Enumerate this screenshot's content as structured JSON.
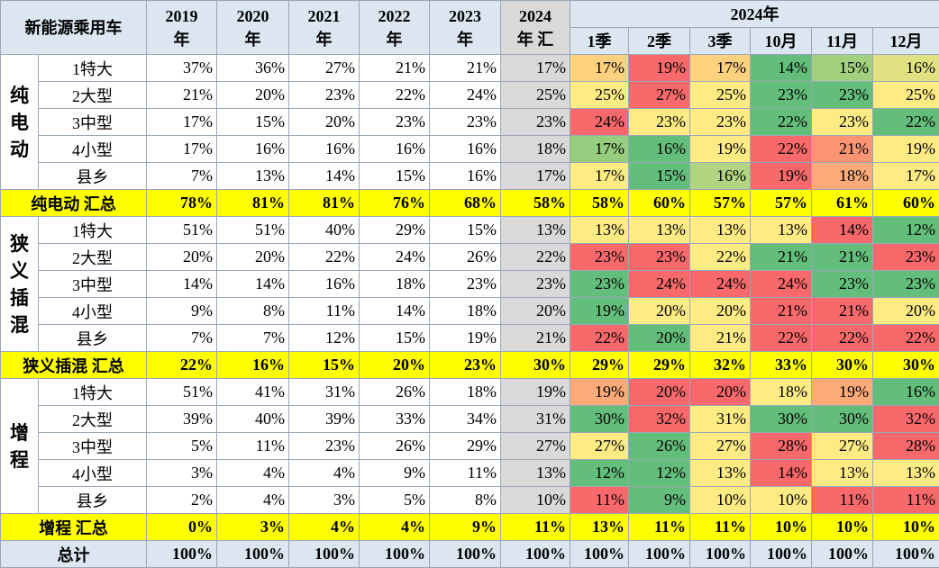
{
  "header": {
    "corner": "新能源乘用车",
    "years": [
      {
        "top": "2019",
        "bottom": "年"
      },
      {
        "top": "2020",
        "bottom": "年"
      },
      {
        "top": "2021",
        "bottom": "年"
      },
      {
        "top": "2022",
        "bottom": "年"
      },
      {
        "top": "2023",
        "bottom": "年"
      },
      {
        "top": "2024",
        "bottom": "年 汇"
      }
    ],
    "group": "2024年",
    "periods": [
      "1季",
      "2季",
      "3季",
      "10月",
      "11月",
      "12月"
    ]
  },
  "groups": [
    {
      "name": "纯电动",
      "rows": [
        {
          "label": "1特大",
          "values": [
            "37%",
            "36%",
            "27%",
            "21%",
            "21%",
            "17%",
            "17%",
            "19%",
            "17%",
            "14%",
            "15%",
            "16%"
          ]
        },
        {
          "label": "2大型",
          "values": [
            "21%",
            "20%",
            "23%",
            "22%",
            "24%",
            "25%",
            "25%",
            "27%",
            "25%",
            "23%",
            "23%",
            "25%"
          ]
        },
        {
          "label": "3中型",
          "values": [
            "17%",
            "15%",
            "20%",
            "23%",
            "23%",
            "23%",
            "24%",
            "23%",
            "23%",
            "22%",
            "23%",
            "22%"
          ]
        },
        {
          "label": "4小型",
          "values": [
            "17%",
            "16%",
            "16%",
            "16%",
            "16%",
            "18%",
            "17%",
            "16%",
            "19%",
            "22%",
            "21%",
            "19%"
          ]
        },
        {
          "label": "县乡",
          "values": [
            "7%",
            "13%",
            "14%",
            "15%",
            "16%",
            "17%",
            "17%",
            "15%",
            "16%",
            "19%",
            "18%",
            "17%"
          ]
        }
      ],
      "total": {
        "label": "纯电动 汇总",
        "values": [
          "78%",
          "81%",
          "81%",
          "76%",
          "68%",
          "58%",
          "58%",
          "60%",
          "57%",
          "57%",
          "61%",
          "60%"
        ]
      }
    },
    {
      "name": "狭义插混",
      "rows": [
        {
          "label": "1特大",
          "values": [
            "51%",
            "51%",
            "40%",
            "29%",
            "15%",
            "13%",
            "13%",
            "13%",
            "13%",
            "13%",
            "14%",
            "12%"
          ]
        },
        {
          "label": "2大型",
          "values": [
            "20%",
            "20%",
            "22%",
            "24%",
            "26%",
            "22%",
            "23%",
            "23%",
            "22%",
            "21%",
            "21%",
            "23%"
          ]
        },
        {
          "label": "3中型",
          "values": [
            "14%",
            "14%",
            "16%",
            "18%",
            "23%",
            "23%",
            "23%",
            "24%",
            "24%",
            "24%",
            "23%",
            "23%"
          ]
        },
        {
          "label": "4小型",
          "values": [
            "9%",
            "8%",
            "11%",
            "14%",
            "18%",
            "20%",
            "19%",
            "20%",
            "20%",
            "21%",
            "21%",
            "20%"
          ]
        },
        {
          "label": "县乡",
          "values": [
            "7%",
            "7%",
            "12%",
            "15%",
            "19%",
            "21%",
            "22%",
            "20%",
            "21%",
            "22%",
            "22%",
            "22%"
          ]
        }
      ],
      "total": {
        "label": "狭义插混 汇总",
        "values": [
          "22%",
          "16%",
          "15%",
          "20%",
          "23%",
          "30%",
          "29%",
          "29%",
          "32%",
          "33%",
          "30%",
          "30%"
        ]
      }
    },
    {
      "name": "增程",
      "rows": [
        {
          "label": "1特大",
          "values": [
            "51%",
            "41%",
            "31%",
            "26%",
            "18%",
            "19%",
            "19%",
            "20%",
            "20%",
            "18%",
            "19%",
            "16%"
          ]
        },
        {
          "label": "2大型",
          "values": [
            "39%",
            "40%",
            "39%",
            "33%",
            "34%",
            "31%",
            "30%",
            "32%",
            "31%",
            "30%",
            "30%",
            "32%"
          ]
        },
        {
          "label": "3中型",
          "values": [
            "5%",
            "11%",
            "23%",
            "26%",
            "29%",
            "27%",
            "27%",
            "26%",
            "27%",
            "28%",
            "27%",
            "28%"
          ]
        },
        {
          "label": "4小型",
          "values": [
            "3%",
            "4%",
            "4%",
            "9%",
            "11%",
            "13%",
            "12%",
            "12%",
            "13%",
            "14%",
            "13%",
            "13%"
          ]
        },
        {
          "label": "县乡",
          "values": [
            "2%",
            "4%",
            "3%",
            "5%",
            "8%",
            "10%",
            "11%",
            "9%",
            "10%",
            "10%",
            "11%",
            "11%"
          ]
        }
      ],
      "total": {
        "label": "增程 汇总",
        "values": [
          "0%",
          "3%",
          "4%",
          "4%",
          "9%",
          "11%",
          "13%",
          "11%",
          "11%",
          "10%",
          "10%",
          "10%"
        ]
      }
    }
  ],
  "grand_total": {
    "label": "总计",
    "values": [
      "100%",
      "100%",
      "100%",
      "100%",
      "100%",
      "100%",
      "100%",
      "100%",
      "100%",
      "100%",
      "100%",
      "100%"
    ]
  }
}
